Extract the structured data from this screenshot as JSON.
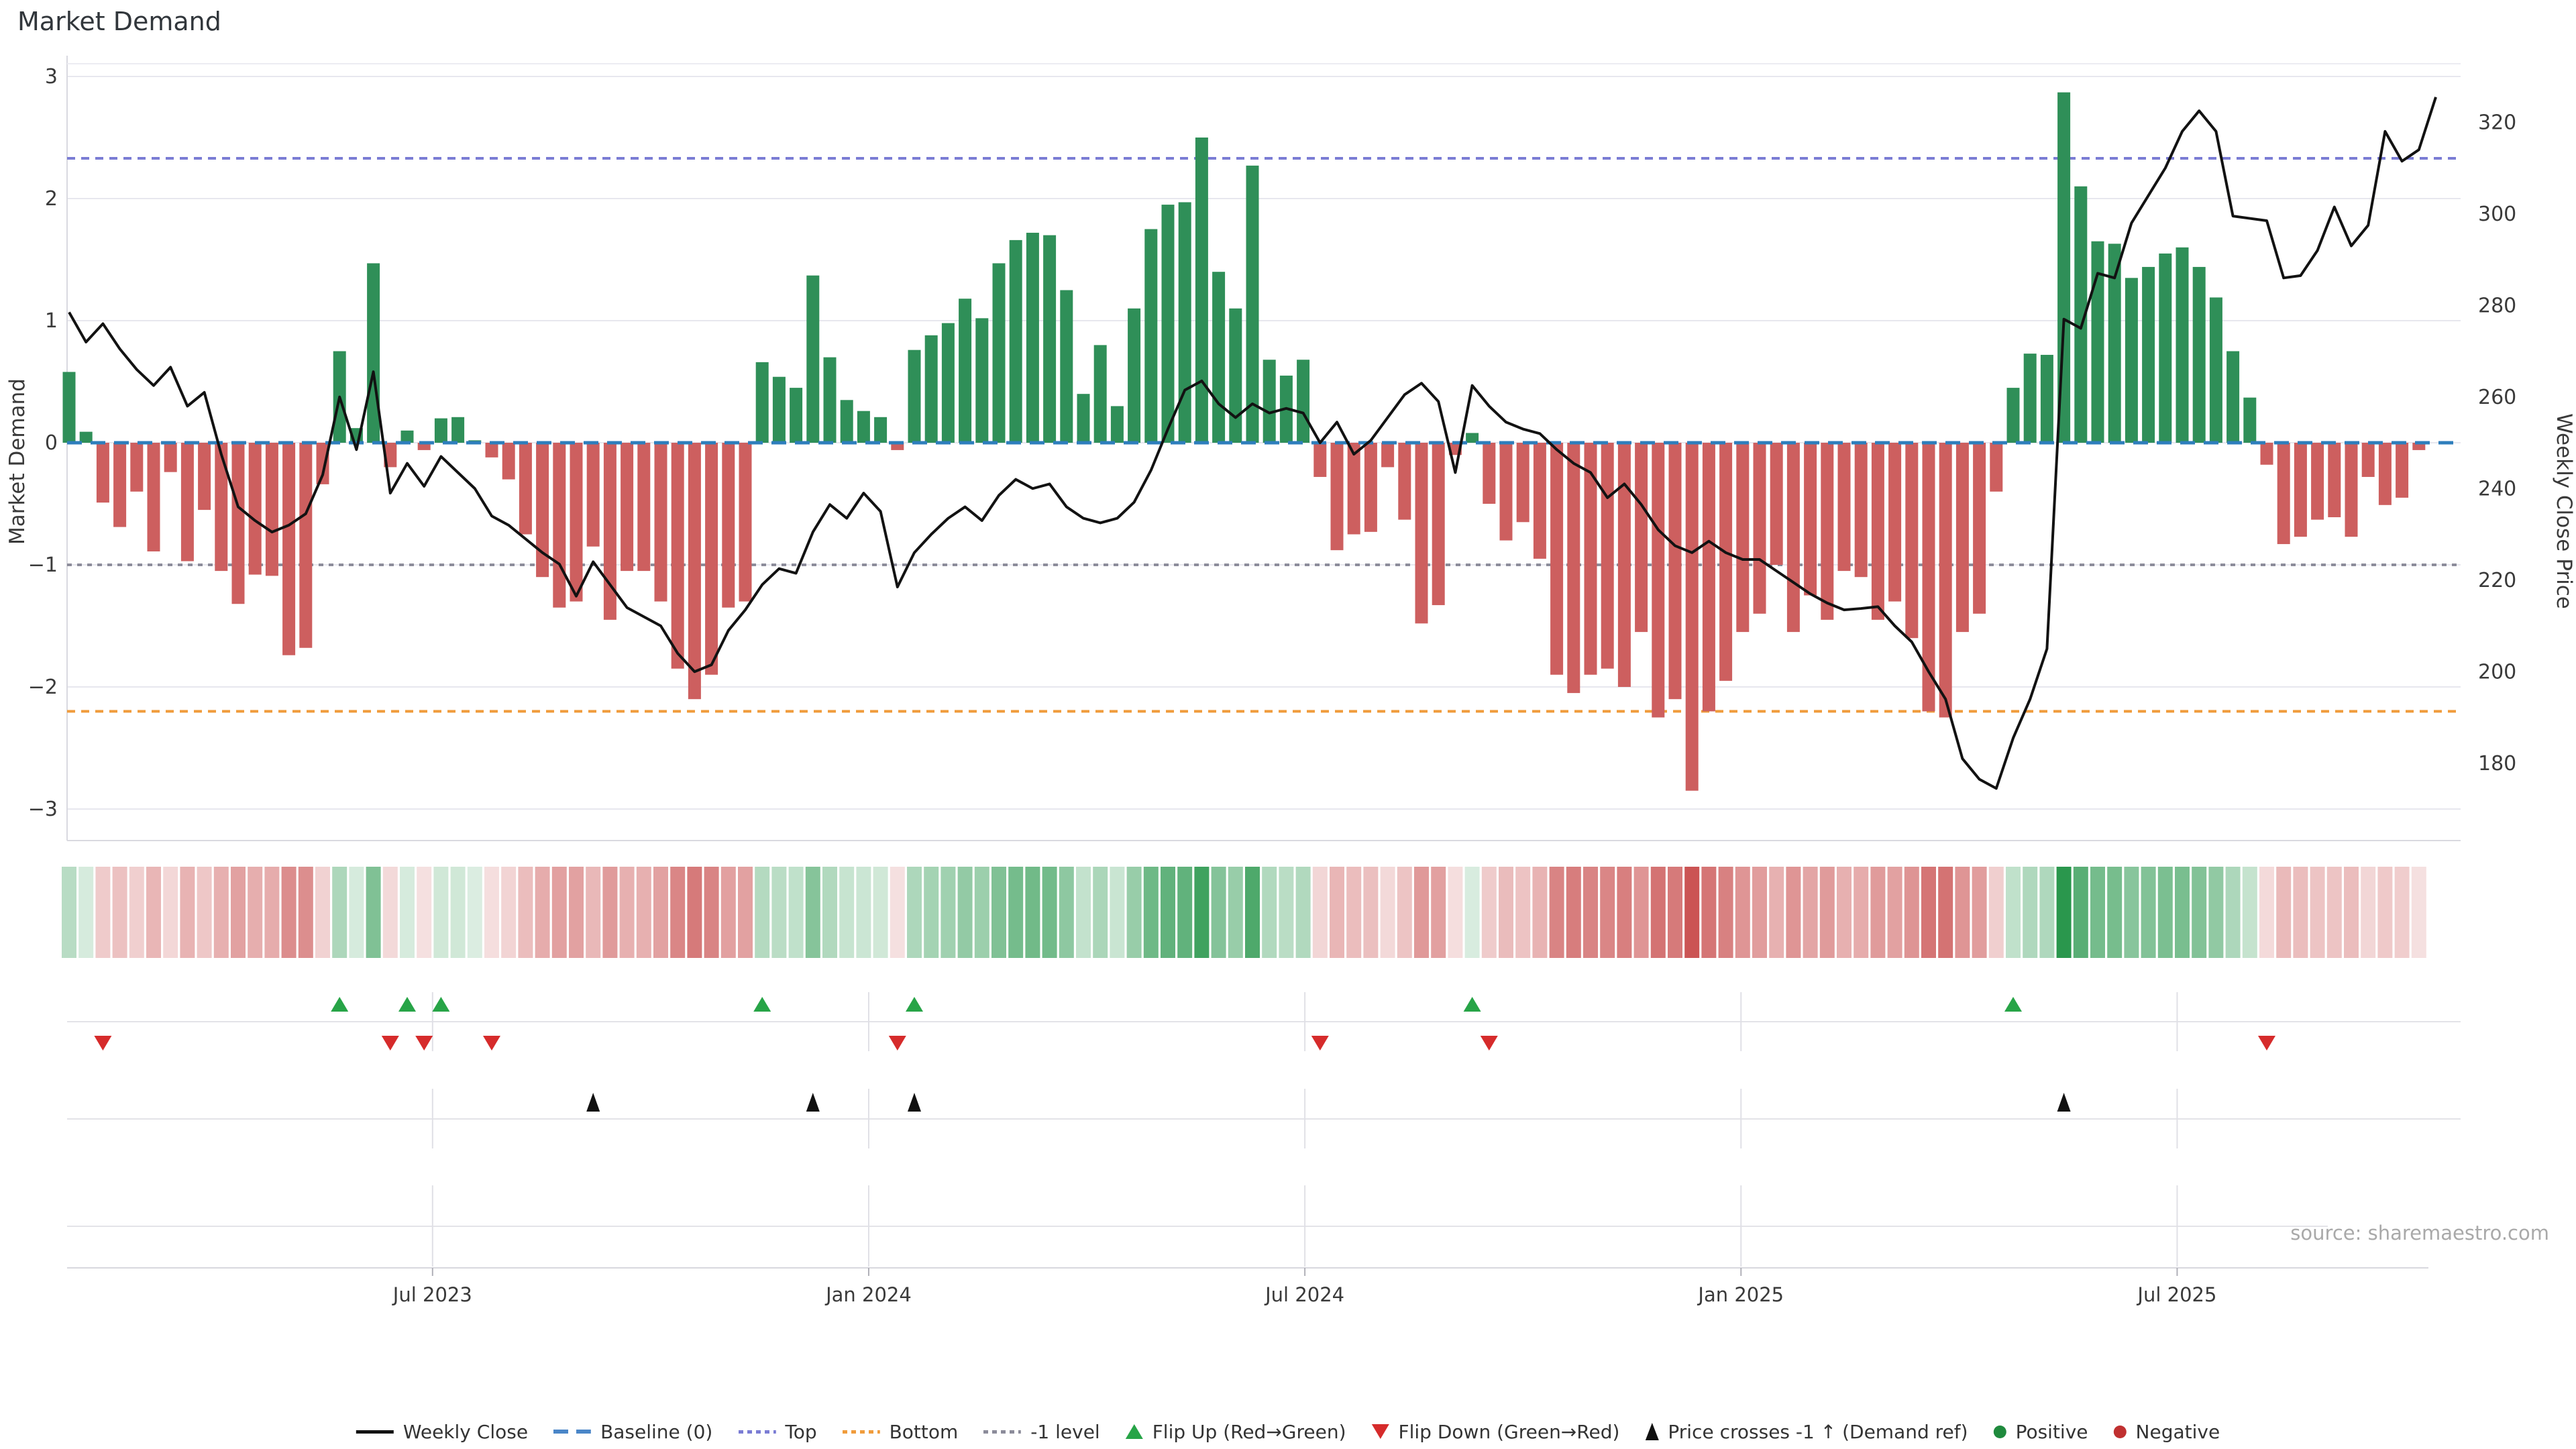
{
  "title": "Market Demand",
  "source_text": "source: sharemaestro.com",
  "axes": {
    "left_label": "Market Demand",
    "right_label": "Weekly Close Price",
    "left_tick_labels": [
      "3",
      "2",
      "1",
      "0",
      "−1",
      "−2",
      "−3"
    ],
    "left_tick_values": [
      3,
      2,
      1,
      0,
      -1,
      -2,
      -3
    ],
    "right_tick_labels": [
      "320",
      "300",
      "280",
      "260",
      "240",
      "220",
      "200",
      "180"
    ],
    "right_tick_values": [
      320,
      300,
      280,
      260,
      240,
      220,
      200,
      180
    ],
    "x_ticks": [
      {
        "label": "Jul 2023",
        "week": 21.5
      },
      {
        "label": "Jan 2024",
        "week": 47.3
      },
      {
        "label": "Jul 2024",
        "week": 73.1
      },
      {
        "label": "Jan 2025",
        "week": 98.9
      },
      {
        "label": "Jul 2025",
        "week": 124.7
      }
    ]
  },
  "colors": {
    "bar_positive": "#2f8f58",
    "bar_negative": "#cd5f5f",
    "price_line": "#121212",
    "baseline": "#2e7ebc",
    "top_line": "#7b7dd4",
    "bottom_line": "#f09c3c",
    "minus_one_line": "#8c8c9a",
    "flip_up": "#27a447",
    "flip_down": "#d62b2b",
    "price_cross": "#111111",
    "grid": "#e7e7ee",
    "spine": "#d9d9e0",
    "tick_text": "#3a3a3a",
    "source": "#a9a9a9",
    "heat_green": "39,150,75",
    "heat_red": "202,82,82"
  },
  "legend": {
    "items": [
      {
        "id": "weekly-close",
        "type": "line",
        "color": "#121212",
        "label": "Weekly Close"
      },
      {
        "id": "baseline",
        "type": "dash",
        "color": "#4a86c8",
        "label": "Baseline (0)"
      },
      {
        "id": "top",
        "type": "dots",
        "color": "#7b7dd4",
        "label": "Top"
      },
      {
        "id": "bottom",
        "type": "dots",
        "color": "#f09c3c",
        "label": "Bottom"
      },
      {
        "id": "minus-1-level",
        "type": "dots",
        "color": "#8c8c9a",
        "label": "-1 level"
      },
      {
        "id": "flip-up",
        "type": "tri-up",
        "color": "#27a447",
        "label": "Flip Up (Red→Green)"
      },
      {
        "id": "flip-down",
        "type": "tri-down",
        "color": "#d62b2b",
        "label": "Flip Down (Green→Red)"
      },
      {
        "id": "price-cross",
        "type": "tri-up-narrow",
        "color": "#111111",
        "label": "Price crosses -1 ↑ (Demand ref)"
      },
      {
        "id": "positive",
        "type": "circle",
        "color": "#1f8a3d",
        "label": "Positive"
      },
      {
        "id": "negative",
        "type": "circle",
        "color": "#c03030",
        "label": "Negative"
      }
    ]
  },
  "chart_data": {
    "type": "bar",
    "subtype": "bar+line dual-axis weekly, with heatmap strip and event-marker rows",
    "x_unit": "week index (weekly data, Feb 2023 – Oct 2025)",
    "ylim_left": [
      -3,
      3
    ],
    "ylim_right": [
      170,
      330
    ],
    "grid": true,
    "legend_position": "bottom center",
    "reference_lines": {
      "baseline": 0,
      "top": 2.33,
      "bottom": -2.2,
      "minus_one": -1
    },
    "series": [
      {
        "name": "Market Demand",
        "type": "bar",
        "axis": "left",
        "values": [
          0.58,
          0.09,
          -0.49,
          -0.69,
          -0.4,
          -0.89,
          -0.24,
          -0.97,
          -0.55,
          -1.05,
          -1.32,
          -1.08,
          -1.09,
          -1.74,
          -1.68,
          -0.34,
          0.75,
          0.12,
          1.47,
          -0.2,
          0.1,
          -0.06,
          0.2,
          0.21,
          0.02,
          -0.12,
          -0.3,
          -0.75,
          -1.1,
          -1.35,
          -1.3,
          -0.85,
          -1.45,
          -1.05,
          -1.05,
          -1.3,
          -1.85,
          -2.1,
          -1.9,
          -1.35,
          -1.3,
          0.66,
          0.54,
          0.45,
          1.37,
          0.7,
          0.35,
          0.26,
          0.21,
          -0.06,
          0.76,
          0.88,
          0.98,
          1.18,
          1.02,
          1.47,
          1.66,
          1.72,
          1.7,
          1.25,
          0.4,
          0.8,
          0.3,
          1.1,
          1.75,
          1.95,
          1.97,
          2.5,
          1.4,
          1.1,
          2.27,
          0.68,
          0.55,
          0.68,
          -0.28,
          -0.88,
          -0.75,
          -0.73,
          -0.2,
          -0.63,
          -1.48,
          -1.33,
          -0.1,
          0.08,
          -0.5,
          -0.8,
          -0.65,
          -0.95,
          -1.9,
          -2.05,
          -1.9,
          -1.85,
          -2.0,
          -1.55,
          -2.25,
          -2.1,
          -2.85,
          -2.2,
          -1.95,
          -1.55,
          -1.4,
          -1.0,
          -1.55,
          -1.25,
          -1.45,
          -1.05,
          -1.1,
          -1.45,
          -1.3,
          -1.6,
          -2.2,
          -2.25,
          -1.55,
          -1.4,
          -0.4,
          0.45,
          0.73,
          0.72,
          2.87,
          2.1,
          1.65,
          1.63,
          1.35,
          1.44,
          1.55,
          1.6,
          1.44,
          1.19,
          0.75,
          0.37,
          -0.18,
          -0.83,
          -0.77,
          -0.63,
          -0.61,
          -0.77,
          -0.28,
          -0.51,
          -0.45,
          -0.06
        ]
      },
      {
        "name": "Weekly Close",
        "type": "line",
        "axis": "right",
        "values": [
          278.5,
          272,
          276,
          270.5,
          266,
          262.5,
          266.5,
          258,
          261,
          247.5,
          236,
          233,
          230.5,
          232,
          234.5,
          243,
          260,
          248.5,
          265.5,
          239,
          245.5,
          240.5,
          247,
          243.5,
          240,
          234,
          232,
          229,
          226,
          223.5,
          216.5,
          224,
          219,
          214,
          212,
          210,
          204,
          200,
          201.5,
          209,
          213.5,
          219,
          222.5,
          221.5,
          230.5,
          236.5,
          233.5,
          239,
          235,
          218.5,
          226,
          230,
          233.5,
          236,
          233,
          238.5,
          242,
          240,
          241,
          236,
          233.5,
          232.5,
          233.5,
          237,
          244,
          253,
          261.5,
          263.5,
          258.5,
          255.5,
          258.5,
          256.5,
          257.5,
          256.5,
          250,
          254.5,
          247.5,
          250.5,
          255.5,
          260.5,
          263,
          259,
          243.5,
          262.5,
          258,
          254.5,
          253,
          252,
          248.5,
          245.5,
          243.5,
          238,
          241,
          236.5,
          231,
          227.5,
          226,
          228.5,
          226,
          224.5,
          224.5,
          222,
          219.5,
          217,
          215,
          213.5,
          213.8,
          214.2,
          210,
          206.5,
          200,
          194,
          181,
          176.5,
          174.5,
          185.5,
          194,
          205,
          277,
          275,
          287,
          286,
          298,
          304,
          310,
          318,
          322.5,
          318,
          299.5,
          299,
          298.5,
          286,
          286.5,
          292,
          301.5,
          293,
          297.5,
          318,
          311.5,
          314,
          325.5
        ]
      }
    ],
    "markers": {
      "flip_up_weeks": [
        16,
        20,
        22,
        41,
        50,
        83,
        115
      ],
      "flip_down_weeks": [
        2,
        19,
        21,
        25,
        49,
        74,
        84,
        130
      ],
      "price_cross_weeks": [
        31,
        44,
        50,
        118
      ]
    },
    "heatmap_strip": "one cell per week, colored by sign and magnitude of Market Demand values"
  }
}
